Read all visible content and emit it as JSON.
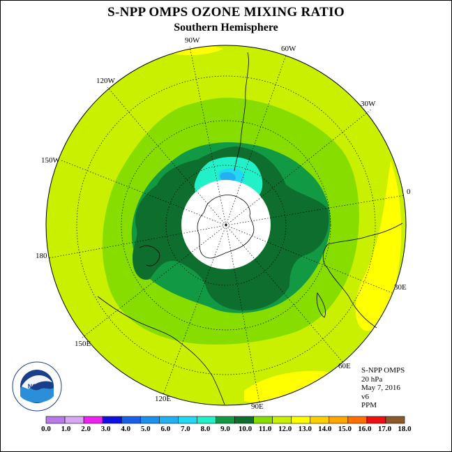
{
  "title": "S-NPP OMPS OZONE MIXING RATIO",
  "subtitle": "Southern Hemisphere",
  "longitude_labels": [
    "90W",
    "60W",
    "30W",
    "0",
    "30E",
    "60E",
    "90E",
    "120E",
    "150E",
    "180",
    "150W",
    "120W"
  ],
  "info": {
    "instrument": "S-NPP OMPS",
    "level": "20 hPa",
    "date": "May 7, 2016",
    "version": "v6",
    "unit": "PPM"
  },
  "logo_text": "NOAA",
  "colorbar": {
    "ticks": [
      "0.0",
      "1.0",
      "2.0",
      "3.0",
      "4.0",
      "5.0",
      "6.0",
      "7.0",
      "8.0",
      "9.0",
      "10.0",
      "11.0",
      "12.0",
      "13.0",
      "14.0",
      "15.0",
      "16.0",
      "17.0",
      "18.0"
    ],
    "colors": [
      "#b77be8",
      "#d6a9f1",
      "#ee22ee",
      "#1010e0",
      "#1860e8",
      "#1c90ee",
      "#22b0f0",
      "#22d8f2",
      "#22f0c8",
      "#119944",
      "#0d6e2e",
      "#88dd00",
      "#c8f000",
      "#ffff00",
      "#ffd000",
      "#ffa600",
      "#ff7000",
      "#ee1010",
      "#8b5a2b"
    ]
  },
  "map_colors": {
    "background": "#c8f000",
    "level_11": "#88dd00",
    "level_9": "#119944",
    "level_10": "#0d6e2e",
    "level_8": "#22f0c8",
    "level_7": "#22d8f2",
    "level_6": "#22b0f0",
    "level_13": "#ffff00"
  }
}
